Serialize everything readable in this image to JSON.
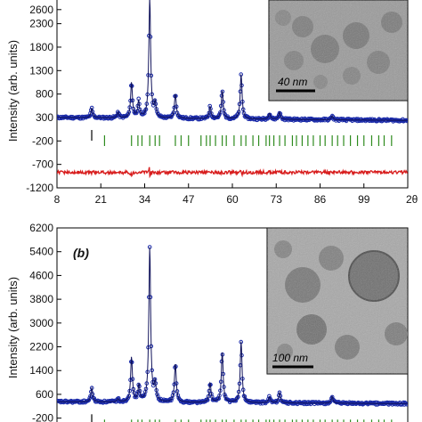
{
  "chart_data": [
    {
      "type": "line",
      "panel_label": "",
      "ylabel": "Intensity (arb. units)",
      "xlabel": "2θ",
      "ylim": [
        -1200,
        2900
      ],
      "xlim": [
        8,
        112
      ],
      "y_ticks": [
        "2600",
        "2300",
        "1800",
        "1300",
        "800",
        "300",
        "-200",
        "-700",
        "-1200"
      ],
      "y_tick_values": [
        2600,
        2300,
        1800,
        1300,
        800,
        300,
        -200,
        -700,
        -1200
      ],
      "x_ticks": [
        "8",
        "21",
        "34",
        "47",
        "60",
        "73",
        "86",
        "99"
      ],
      "x_tick_values": [
        8,
        21,
        34,
        47,
        60,
        73,
        86,
        99
      ],
      "x_axis_end_label": "2θ",
      "baseline": 300,
      "peaks": [
        {
          "x": 18.3,
          "y": 500
        },
        {
          "x": 26.1,
          "y": 420
        },
        {
          "x": 30.1,
          "y": 1050
        },
        {
          "x": 32.2,
          "y": 650
        },
        {
          "x": 35.5,
          "y": 2850
        },
        {
          "x": 37.1,
          "y": 600
        },
        {
          "x": 43.1,
          "y": 820
        },
        {
          "x": 53.4,
          "y": 560
        },
        {
          "x": 57.0,
          "y": 900
        },
        {
          "x": 62.6,
          "y": 1250
        },
        {
          "x": 71.0,
          "y": 420
        },
        {
          "x": 74.0,
          "y": 450
        },
        {
          "x": 89.6,
          "y": 380
        }
      ],
      "ticks_row": {
        "y": -80,
        "black": [
          18.3
        ],
        "green": [
          22.1,
          30.1,
          32.0,
          33.2,
          35.5,
          37.1,
          38.4,
          43.1,
          44.8,
          47.0,
          50.7,
          52.3,
          53.4,
          55.0,
          57.0,
          58.2,
          60.5,
          62.6,
          64.0,
          66.1,
          67.8,
          70.0,
          71.0,
          72.3,
          74.0,
          75.6,
          77.8,
          79.0,
          80.7,
          82.4,
          84.0,
          86.0,
          87.5,
          89.6,
          91.2,
          93.0,
          95.0,
          97.1,
          99.0,
          101.3,
          103.4,
          105.0,
          107.2
        ]
      },
      "difference": {
        "offset": -870,
        "features": [
          {
            "x": 35.5,
            "amp": 90
          },
          {
            "x": 30.1,
            "amp": 40
          },
          {
            "x": 62.6,
            "amp": 35
          }
        ]
      },
      "colors": {
        "observed": "#1a2aa8",
        "calc": "#10125a",
        "difference": "#d81e1e",
        "bragg": "#2e8b1e"
      },
      "inset": {
        "scale_label": "40 nm"
      }
    },
    {
      "type": "line",
      "panel_label": "(b)",
      "ylabel": "Intensity (arb. units)",
      "ylim": [
        -450,
        6200
      ],
      "xlim": [
        8,
        112
      ],
      "y_ticks": [
        "6200",
        "5400",
        "4600",
        "3800",
        "3000",
        "2200",
        "1400",
        "600",
        "-200"
      ],
      "y_tick_values": [
        6200,
        5400,
        4600,
        3800,
        3000,
        2200,
        1400,
        600,
        -200
      ],
      "baseline": 350,
      "peaks": [
        {
          "x": 18.3,
          "y": 820
        },
        {
          "x": 26.1,
          "y": 450
        },
        {
          "x": 30.1,
          "y": 1850
        },
        {
          "x": 32.3,
          "y": 900
        },
        {
          "x": 35.5,
          "y": 5550
        },
        {
          "x": 37.1,
          "y": 950
        },
        {
          "x": 43.1,
          "y": 1650
        },
        {
          "x": 53.4,
          "y": 1000
        },
        {
          "x": 57.0,
          "y": 2050
        },
        {
          "x": 62.6,
          "y": 2400
        },
        {
          "x": 71.0,
          "y": 550
        },
        {
          "x": 74.0,
          "y": 700
        },
        {
          "x": 89.6,
          "y": 580
        }
      ],
      "ticks_row": {
        "y": -250,
        "black": [
          18.3
        ],
        "green": [
          22.1,
          30.1,
          32.0,
          33.2,
          35.5,
          37.1,
          38.4,
          43.1,
          44.8,
          47.0,
          50.7,
          52.3,
          53.4,
          55.0,
          57.0,
          58.2,
          60.5,
          62.6,
          64.0,
          66.1,
          67.8,
          70.0,
          71.0,
          72.3,
          74.0,
          75.6,
          77.8,
          79.0,
          80.7,
          82.4,
          84.0,
          86.0,
          87.5,
          89.6,
          91.2,
          93.0,
          95.0,
          97.1,
          99.0,
          101.3,
          103.4,
          105.0,
          107.2
        ]
      },
      "colors": {
        "observed": "#1a2aa8",
        "calc": "#10125a",
        "bragg": "#2e8b1e"
      },
      "inset": {
        "scale_label": "100 nm"
      }
    }
  ]
}
